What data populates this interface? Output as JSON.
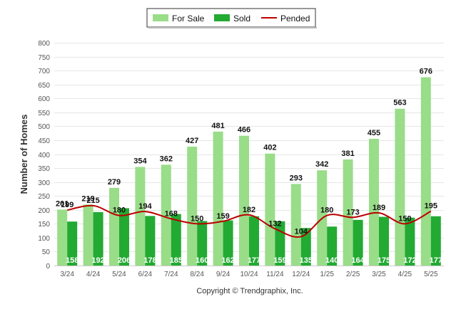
{
  "chart_data": {
    "type": "bar",
    "categories": [
      "3/24",
      "4/24",
      "5/24",
      "6/24",
      "7/24",
      "8/24",
      "9/24",
      "10/24",
      "11/24",
      "12/24",
      "1/25",
      "2/25",
      "3/25",
      "4/25",
      "5/25"
    ],
    "series": [
      {
        "name": "For Sale",
        "type": "bar",
        "color": "#99dd88",
        "values": [
          201,
          219,
          279,
          354,
          362,
          427,
          481,
          466,
          402,
          293,
          342,
          381,
          455,
          563,
          676
        ]
      },
      {
        "name": "Sold",
        "type": "bar",
        "color": "#22aa33",
        "values": [
          158,
          192,
          206,
          178,
          185,
          160,
          162,
          177,
          159,
          135,
          140,
          164,
          175,
          172,
          177
        ]
      },
      {
        "name": "Pended",
        "type": "line",
        "color": "#bb0000",
        "values": [
          199,
          215,
          180,
          194,
          168,
          150,
          159,
          182,
          132,
          104,
          180,
          173,
          189,
          150,
          195
        ]
      }
    ],
    "ylabel": "Number of Homes",
    "xlabel": "",
    "ylim": [
      0,
      800
    ],
    "yticks": [
      0,
      50,
      100,
      150,
      200,
      250,
      300,
      350,
      400,
      450,
      500,
      550,
      600,
      650,
      700,
      750,
      800
    ],
    "grid": true,
    "legend_position": "top-center",
    "footer": "Copyright © Trendgraphix, Inc."
  }
}
